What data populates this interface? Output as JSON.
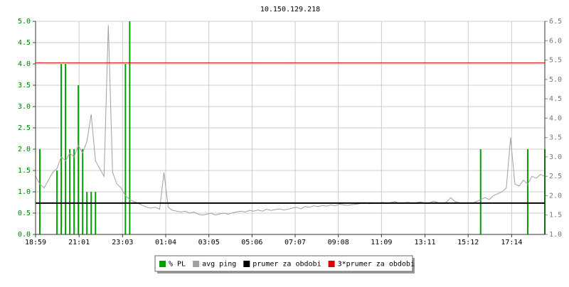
{
  "chart_data": {
    "type": "line",
    "title": "10.150.129.218",
    "x": [
      0,
      12,
      24,
      36,
      48,
      60,
      72,
      84,
      96,
      108,
      120,
      132,
      144,
      156,
      168,
      180,
      192,
      204,
      216,
      228,
      240,
      252,
      264,
      276,
      288,
      300,
      312,
      324,
      336,
      348,
      360,
      372,
      384,
      396,
      408,
      420,
      432,
      444,
      456,
      468,
      480,
      492,
      504,
      516,
      528,
      540,
      552,
      564,
      576,
      588,
      600,
      612,
      624,
      636,
      648,
      660,
      672,
      684,
      696,
      708,
      720,
      732,
      744,
      756,
      768,
      780,
      792,
      804,
      816,
      828,
      840,
      852,
      864,
      876,
      888,
      900,
      912,
      924,
      936,
      948,
      960,
      972,
      984,
      996,
      1008,
      1020,
      1032,
      1044,
      1056,
      1068,
      1080,
      1092,
      1104,
      1116,
      1128,
      1140,
      1152,
      1164,
      1176,
      1188,
      1200,
      1212,
      1224,
      1236,
      1248,
      1260,
      1272,
      1284,
      1296,
      1308,
      1320,
      1332,
      1344,
      1356,
      1368,
      1380,
      1392,
      1404,
      1416,
      1428
    ],
    "xlim": [
      0,
      1428
    ],
    "xticks": [
      {
        "value": 0,
        "label": "18:59"
      },
      {
        "value": 122,
        "label": "21:01"
      },
      {
        "value": 244,
        "label": "23:03"
      },
      {
        "value": 365,
        "label": "01:04"
      },
      {
        "value": 486,
        "label": "03:05"
      },
      {
        "value": 607,
        "label": "05:06"
      },
      {
        "value": 728,
        "label": "07:07"
      },
      {
        "value": 849,
        "label": "09:08"
      },
      {
        "value": 970,
        "label": "11:09"
      },
      {
        "value": 1092,
        "label": "13:11"
      },
      {
        "value": 1213,
        "label": "15:12"
      },
      {
        "value": 1335,
        "label": "17:14"
      }
    ],
    "ylim": [
      0,
      5
    ],
    "yticks": [
      {
        "value": 0,
        "label": "0.0"
      },
      0.5,
      {
        "value": 1,
        "label": "1.0"
      },
      1.5,
      {
        "value": 2,
        "label": "2.0"
      },
      2.5,
      {
        "value": 3,
        "label": "3.0"
      },
      3.5,
      {
        "value": 4,
        "label": "4.0"
      },
      4.5,
      {
        "value": 5,
        "label": "5.0"
      }
    ],
    "y2lim": [
      1,
      6.5
    ],
    "y2ticks": [
      {
        "value": 1,
        "label": "1.0"
      },
      1.5,
      {
        "value": 2,
        "label": "2.0"
      },
      2.5,
      {
        "value": 3,
        "label": "3.0"
      },
      3.5,
      {
        "value": 4,
        "label": "4.0"
      },
      4.5,
      {
        "value": 5,
        "label": "5.0"
      },
      5.5,
      {
        "value": 6,
        "label": "6.0"
      },
      6.5
    ],
    "grid": true,
    "series": [
      {
        "name": "% PL",
        "color": "#00a000",
        "style": "spikes",
        "values": [
          0,
          2,
          0,
          0,
          0,
          1.5,
          4,
          4,
          2,
          2,
          3.5,
          2,
          1,
          1,
          1,
          0,
          0,
          0,
          0,
          0,
          0,
          4,
          5,
          0,
          0,
          0,
          0,
          0,
          0,
          0,
          0,
          0,
          0,
          0,
          0,
          0,
          0,
          0,
          0,
          0,
          0,
          0,
          0,
          0,
          0,
          0,
          0,
          0,
          0,
          0,
          0,
          0,
          0,
          0,
          0,
          0,
          0,
          0,
          0,
          0,
          0,
          0,
          0,
          0,
          0,
          0,
          0,
          0,
          0,
          0,
          0,
          0,
          0,
          0,
          0,
          0,
          0,
          0,
          0,
          0,
          0,
          0,
          0,
          0,
          0,
          0,
          0,
          0,
          0,
          0,
          0,
          0,
          0,
          0,
          0,
          0,
          0,
          0,
          0,
          0,
          0,
          0,
          0,
          0,
          2,
          0,
          0,
          0,
          0,
          0,
          0,
          0,
          0,
          0,
          0,
          2,
          0,
          0,
          0,
          2
        ]
      },
      {
        "name": "avg ping",
        "color": "#a0a0a0",
        "style": "line",
        "axis": "y2",
        "values": [
          2.5,
          2.3,
          2.2,
          2.4,
          2.6,
          2.7,
          3.0,
          2.9,
          3.1,
          3.0,
          3.3,
          3.1,
          3.4,
          4.1,
          2.9,
          2.7,
          2.5,
          6.4,
          2.6,
          2.3,
          2.2,
          2.0,
          1.9,
          1.85,
          1.8,
          1.75,
          1.7,
          1.68,
          1.7,
          1.65,
          2.6,
          1.7,
          1.62,
          1.6,
          1.58,
          1.6,
          1.55,
          1.58,
          1.52,
          1.5,
          1.52,
          1.55,
          1.5,
          1.53,
          1.55,
          1.52,
          1.56,
          1.58,
          1.6,
          1.58,
          1.62,
          1.6,
          1.63,
          1.6,
          1.65,
          1.62,
          1.64,
          1.66,
          1.63,
          1.65,
          1.68,
          1.7,
          1.66,
          1.72,
          1.7,
          1.74,
          1.72,
          1.75,
          1.73,
          1.76,
          1.74,
          1.78,
          1.76,
          1.75,
          1.77,
          1.78,
          1.8,
          1.82,
          1.79,
          1.81,
          1.8,
          1.83,
          1.8,
          1.82,
          1.85,
          1.8,
          1.81,
          1.83,
          1.8,
          1.82,
          1.84,
          1.8,
          1.81,
          1.86,
          1.82,
          1.8,
          1.83,
          1.95,
          1.85,
          1.82,
          1.8,
          1.82,
          1.8,
          1.85,
          1.9,
          1.95,
          1.9,
          2.0,
          2.05,
          2.1,
          2.2,
          3.5,
          2.3,
          2.25,
          2.4,
          2.3,
          2.5,
          2.45,
          2.55,
          2.5
        ]
      }
    ],
    "hlines": [
      {
        "name": "prumer za obdobi",
        "color": "#000000",
        "axis": "y2",
        "value": 1.81
      },
      {
        "name": "3*prumer za obdobi",
        "color": "#e00000",
        "axis": "y2",
        "value": 5.43
      }
    ]
  }
}
